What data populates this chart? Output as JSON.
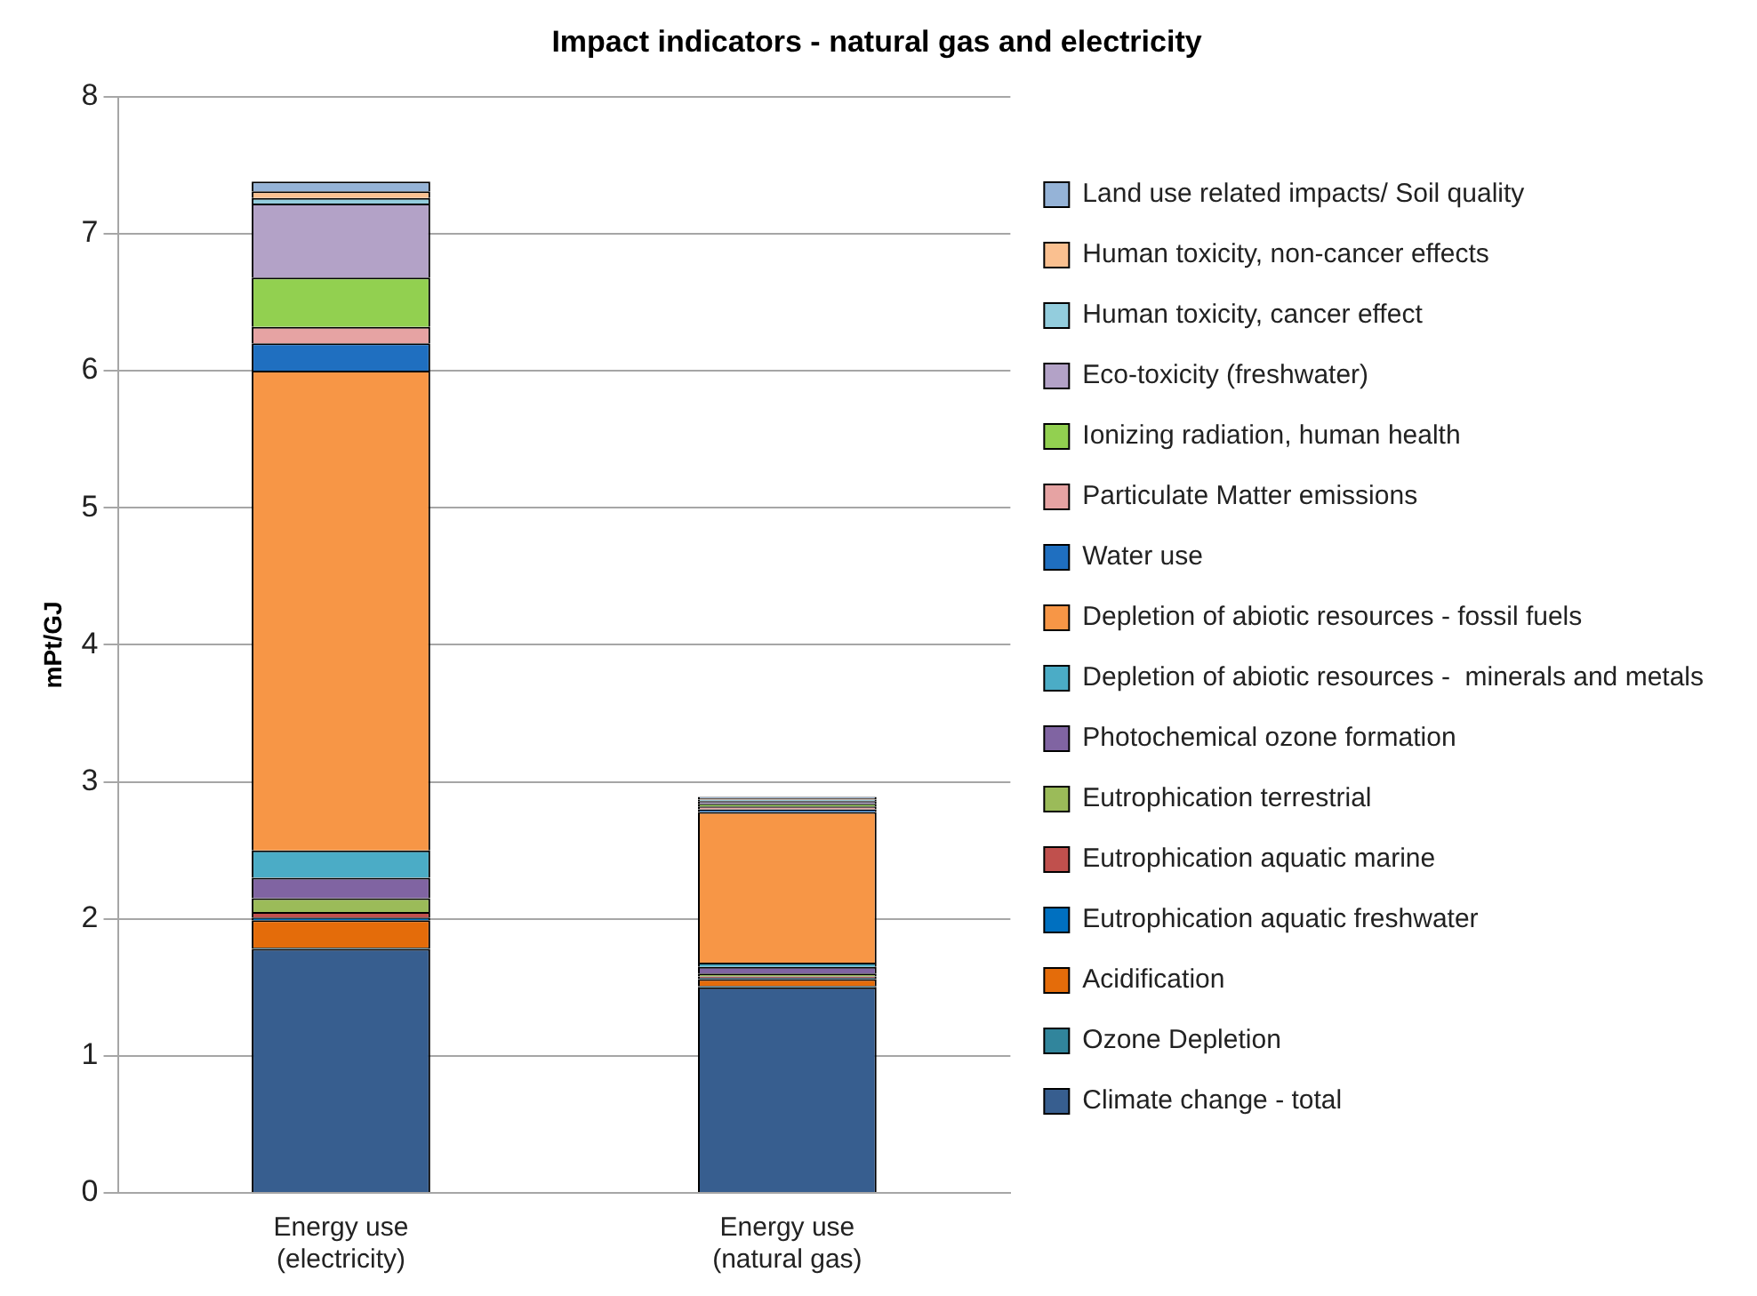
{
  "chart_data": {
    "type": "bar",
    "stacked": true,
    "title": "Impact indicators - natural gas and electricity",
    "ylabel": "mPt/GJ",
    "categories": [
      "Energy use\n(electricity)",
      "Energy use\n(natural gas)"
    ],
    "ylim": [
      0,
      8
    ],
    "yticks": [
      0,
      1,
      2,
      3,
      4,
      5,
      6,
      7,
      8
    ],
    "grid": "y",
    "legend": "right",
    "series": [
      {
        "name": "Climate change - total",
        "color": "#375e8f",
        "values": [
          1.78,
          1.5
        ]
      },
      {
        "name": "Ozone Depletion",
        "color": "#31859c",
        "values": [
          0.01,
          0.01
        ]
      },
      {
        "name": "Acidification",
        "color": "#e46c0a",
        "values": [
          0.2,
          0.05
        ]
      },
      {
        "name": "Eutrophication aquatic freshwater",
        "color": "#0070c0",
        "values": [
          0.02,
          0.01
        ]
      },
      {
        "name": "Eutrophication aquatic marine",
        "color": "#c0504d",
        "values": [
          0.04,
          0.01
        ]
      },
      {
        "name": "Eutrophication terrestrial",
        "color": "#9bbb59",
        "values": [
          0.1,
          0.02
        ]
      },
      {
        "name": "Photochemical ozone formation",
        "color": "#8064a2",
        "values": [
          0.15,
          0.05
        ]
      },
      {
        "name": "Depletion of abiotic resources -  minerals and metals",
        "color": "#4bacc6",
        "values": [
          0.2,
          0.03
        ]
      },
      {
        "name": "Depletion of abiotic resources - fossil fuels",
        "color": "#f79646",
        "values": [
          3.5,
          1.1
        ]
      },
      {
        "name": "Water use",
        "color": "#1f6fc0",
        "values": [
          0.2,
          0.02
        ]
      },
      {
        "name": "Particulate Matter emissions",
        "color": "#e6a3a3",
        "values": [
          0.12,
          0.02
        ]
      },
      {
        "name": "Ionizing radiation, human health",
        "color": "#92d050",
        "values": [
          0.36,
          0.02
        ]
      },
      {
        "name": "Eco-toxicity (freshwater)",
        "color": "#b3a2c7",
        "values": [
          0.54,
          0.02
        ]
      },
      {
        "name": "Human toxicity, cancer effect",
        "color": "#93cddd",
        "values": [
          0.04,
          0.01
        ]
      },
      {
        "name": "Human toxicity, non-cancer effects",
        "color": "#fac090",
        "values": [
          0.05,
          0.01
        ]
      },
      {
        "name": "Land use related impacts/ Soil quality",
        "color": "#95b3d7",
        "values": [
          0.07,
          0.01
        ]
      }
    ]
  }
}
